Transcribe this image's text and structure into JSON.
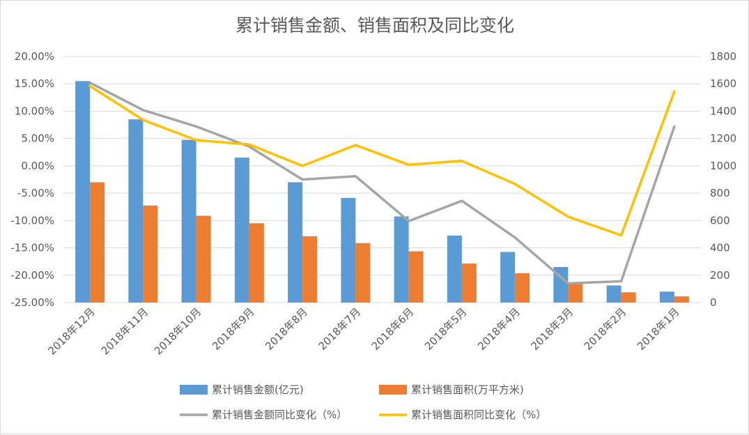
{
  "chart_data": {
    "type": "bar",
    "title": "累计销售金额、销售面积及同比变化",
    "categories": [
      "2018年12月",
      "2018年11月",
      "2018年10月",
      "2018年9月",
      "2018年8月",
      "2018年7月",
      "2018年6月",
      "2018年5月",
      "2018年4月",
      "2018年3月",
      "2018年2月",
      "2018年1月"
    ],
    "left_axis": {
      "min": -0.25,
      "max": 0.2,
      "step": 0.05,
      "tick_labels": [
        "20.00%",
        "15.00%",
        "10.00%",
        "5.00%",
        "0.00%",
        "-5.00%",
        "-10.00%",
        "-15.00%",
        "-20.00%",
        "-25.00%"
      ]
    },
    "right_axis": {
      "min": 0,
      "max": 1800,
      "step": 200,
      "tick_labels": [
        "1800",
        "1600",
        "1400",
        "1200",
        "1000",
        "800",
        "600",
        "400",
        "200",
        "0"
      ]
    },
    "series": [
      {
        "name": "累计销售金额(亿元)",
        "type": "bar",
        "axis": "right",
        "color": "#5B9BD5",
        "values": [
          1620,
          1340,
          1190,
          1060,
          880,
          765,
          630,
          490,
          370,
          260,
          125,
          80
        ]
      },
      {
        "name": "累计销售面积(万平方米)",
        "type": "bar",
        "axis": "right",
        "color": "#ED7D31",
        "values": [
          880,
          710,
          635,
          580,
          485,
          435,
          375,
          285,
          215,
          145,
          75,
          45
        ]
      },
      {
        "name": "累计销售金额同比变化（%）",
        "type": "line",
        "axis": "left",
        "color": "#A5A5A5",
        "values": [
          0.152,
          0.102,
          0.072,
          0.035,
          -0.025,
          -0.019,
          -0.101,
          -0.064,
          -0.131,
          -0.215,
          -0.211,
          0.072
        ]
      },
      {
        "name": "累计销售面积同比变化（%）",
        "type": "line",
        "axis": "left",
        "color": "#FFC000",
        "values": [
          0.146,
          0.084,
          0.047,
          0.039,
          0.0,
          0.038,
          0.002,
          0.009,
          -0.033,
          -0.093,
          -0.127,
          0.136
        ]
      }
    ],
    "legend": {
      "placement": "bottom",
      "items": [
        "累计销售金额(亿元)",
        "累计销售面积(万平方米)",
        "累计销售金额同比变化（%）",
        "累计销售面积同比变化（%）"
      ]
    }
  }
}
